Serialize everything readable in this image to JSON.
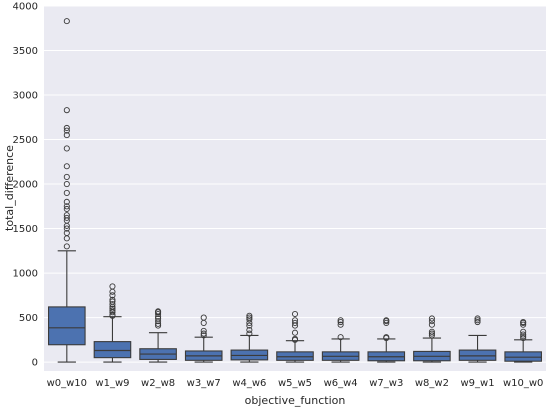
{
  "chart_data": {
    "type": "box",
    "xlabel": "objective_function",
    "ylabel": "total_difference",
    "ylim": [
      -100,
      4000
    ],
    "yticks": [
      0,
      500,
      1000,
      1500,
      2000,
      2500,
      3000,
      3500,
      4000
    ],
    "grid": true,
    "colors": {
      "background": "#eaeaf2",
      "grid": "#ffffff",
      "box_fill": "#4c72b0",
      "line": "#3b3b3b"
    },
    "categories": [
      "w0_w10",
      "w1_w9",
      "w2_w8",
      "w3_w7",
      "w4_w6",
      "w5_w5",
      "w6_w4",
      "w7_w3",
      "w8_w2",
      "w9_w1",
      "w10_w0"
    ],
    "boxes": [
      {
        "min": 0,
        "q1": 195,
        "median": 385,
        "q3": 620,
        "max": 1250,
        "outliers": [
          1300,
          1390,
          1450,
          1500,
          1530,
          1590,
          1620,
          1650,
          1720,
          1750,
          1800,
          1900,
          2000,
          2080,
          2200,
          2400,
          2550,
          2600,
          2630,
          2830,
          3830
        ]
      },
      {
        "min": 0,
        "q1": 50,
        "median": 130,
        "q3": 230,
        "max": 510,
        "outliers": [
          520,
          530,
          560,
          580,
          600,
          620,
          650,
          680,
          700,
          750,
          790,
          850
        ]
      },
      {
        "min": 0,
        "q1": 30,
        "median": 90,
        "q3": 150,
        "max": 330,
        "outliers": [
          410,
          430,
          460,
          490,
          510,
          540,
          560,
          570
        ]
      },
      {
        "min": 0,
        "q1": 20,
        "median": 70,
        "q3": 125,
        "max": 280,
        "outliers": [
          300,
          320,
          350,
          440,
          500
        ]
      },
      {
        "min": 0,
        "q1": 25,
        "median": 75,
        "q3": 135,
        "max": 300,
        "outliers": [
          320,
          360,
          410,
          440,
          480,
          500,
          520
        ]
      },
      {
        "min": 0,
        "q1": 20,
        "median": 60,
        "q3": 115,
        "max": 240,
        "outliers": [
          250,
          260,
          330,
          410,
          440,
          470,
          540
        ]
      },
      {
        "min": 0,
        "q1": 20,
        "median": 65,
        "q3": 115,
        "max": 260,
        "outliers": [
          280,
          420,
          450,
          470
        ]
      },
      {
        "min": 0,
        "q1": 15,
        "median": 60,
        "q3": 115,
        "max": 260,
        "outliers": [
          270,
          280,
          440,
          460,
          470
        ]
      },
      {
        "min": 0,
        "q1": 15,
        "median": 65,
        "q3": 120,
        "max": 270,
        "outliers": [
          300,
          320,
          340,
          420,
          460,
          490
        ]
      },
      {
        "min": 0,
        "q1": 20,
        "median": 70,
        "q3": 135,
        "max": 300,
        "outliers": [
          450,
          470,
          490
        ]
      },
      {
        "min": 0,
        "q1": 10,
        "median": 55,
        "q3": 115,
        "max": 250,
        "outliers": [
          270,
          290,
          310,
          340,
          420,
          440,
          450
        ]
      }
    ]
  }
}
